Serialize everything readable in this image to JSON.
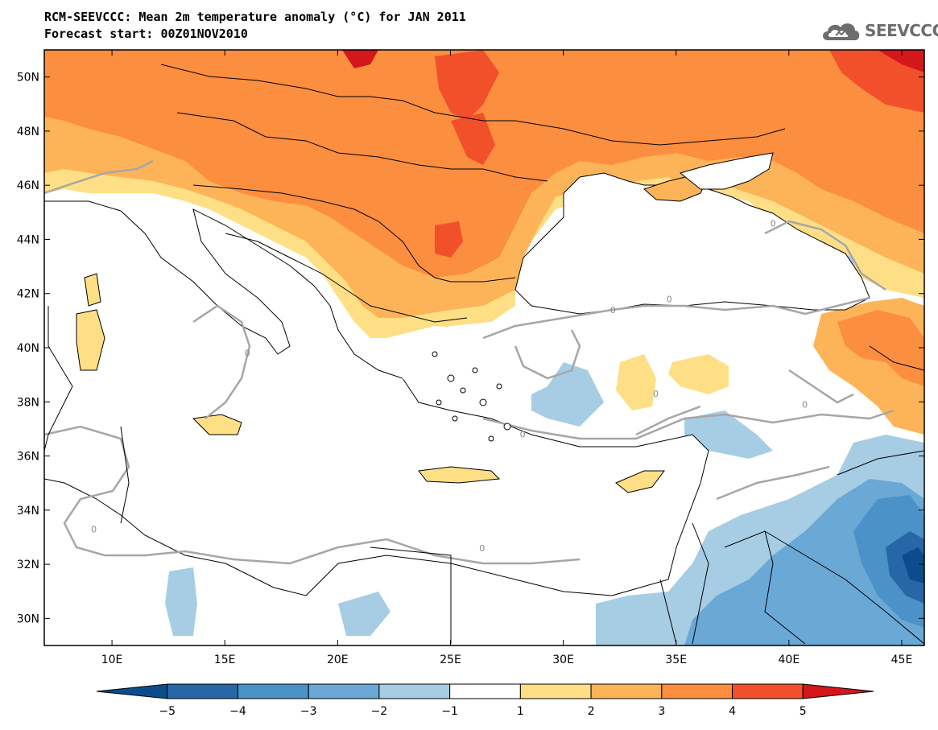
{
  "header": {
    "title": "RCM-SEEVCCC: Mean 2m temperature anomaly (°C) for JAN 2011",
    "subtitle": "Forecast start: 00Z01NOV2010",
    "logo_text": "SEEVCCC"
  },
  "map": {
    "lon_range": [
      7,
      46
    ],
    "lat_range": [
      29,
      51
    ],
    "x_ticks": [
      {
        "value": 10,
        "label": "10E"
      },
      {
        "value": 15,
        "label": "15E"
      },
      {
        "value": 20,
        "label": "20E"
      },
      {
        "value": 25,
        "label": "25E"
      },
      {
        "value": 30,
        "label": "30E"
      },
      {
        "value": 35,
        "label": "35E"
      },
      {
        "value": 40,
        "label": "40E"
      },
      {
        "value": 45,
        "label": "45E"
      }
    ],
    "y_ticks": [
      {
        "value": 50,
        "label": "50N"
      },
      {
        "value": 48,
        "label": "48N"
      },
      {
        "value": 46,
        "label": "46N"
      },
      {
        "value": 44,
        "label": "44N"
      },
      {
        "value": 42,
        "label": "42N"
      },
      {
        "value": 40,
        "label": "40N"
      },
      {
        "value": 38,
        "label": "38N"
      },
      {
        "value": 36,
        "label": "36N"
      },
      {
        "value": 34,
        "label": "34N"
      },
      {
        "value": 32,
        "label": "32N"
      },
      {
        "value": 30,
        "label": "30N"
      }
    ],
    "contour_zero_label": "0"
  },
  "colorbar": {
    "bins": [
      {
        "color": "#0b4d8c"
      },
      {
        "color": "#2767a8"
      },
      {
        "color": "#4b92c8"
      },
      {
        "color": "#6aa8d6"
      },
      {
        "color": "#a6cde4"
      },
      {
        "color": "#ffffff"
      },
      {
        "color": "#fedf86"
      },
      {
        "color": "#fdb459"
      },
      {
        "color": "#fb8e3f"
      },
      {
        "color": "#f2502a"
      },
      {
        "color": "#d3171b"
      }
    ],
    "labels": [
      "−5",
      "−4",
      "−3",
      "−2",
      "−1",
      "1",
      "2",
      "3",
      "4",
      "5"
    ]
  },
  "colors": {
    "ocean": "#ffffff",
    "coast": "#000000",
    "zero_contour": "#a6a6a6"
  }
}
